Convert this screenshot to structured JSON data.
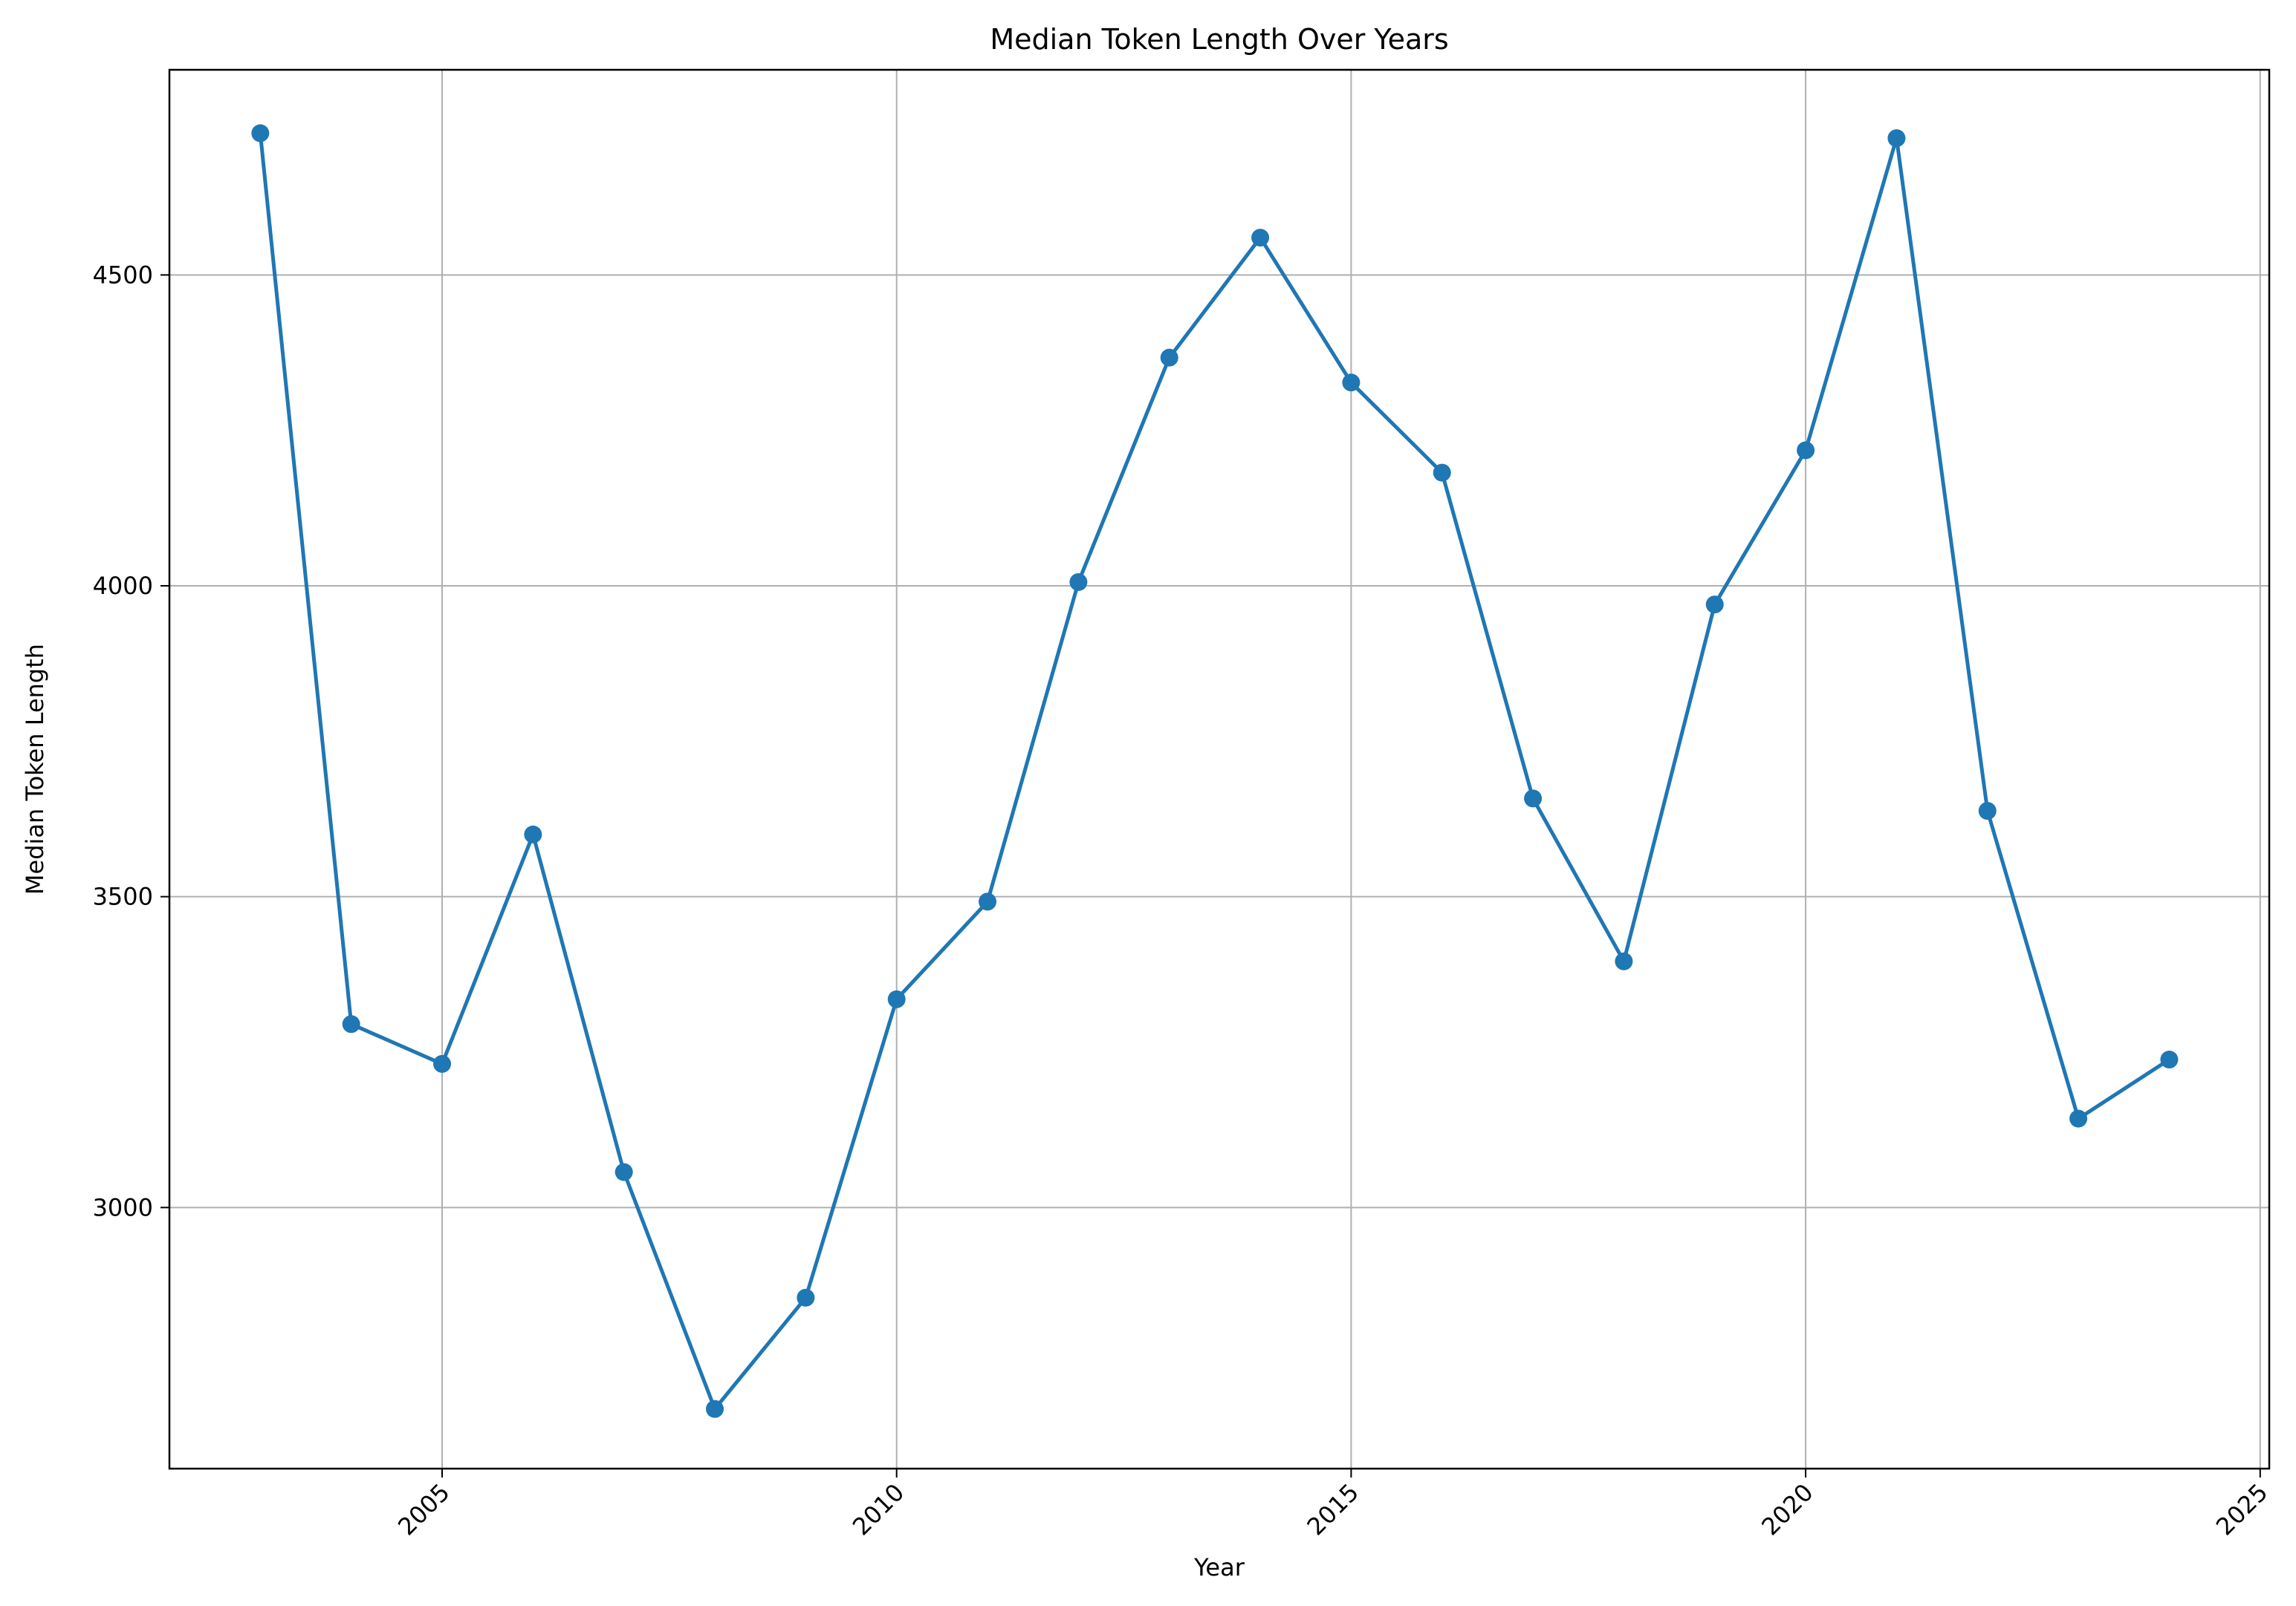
{
  "chart_data": {
    "type": "line",
    "title": "Median Token Length Over Years",
    "xlabel": "Year",
    "ylabel": "Median Token Length",
    "xlim": [
      2002,
      2025.1
    ],
    "ylim": [
      2580,
      4830
    ],
    "xticks": [
      2005,
      2010,
      2015,
      2020,
      2025
    ],
    "yticks": [
      3000,
      3500,
      4000,
      4500
    ],
    "grid": true,
    "x_tick_rotation": 45,
    "colors": {
      "line": "#1f77b4",
      "grid": "#b0b0b0",
      "axes": "#000000"
    },
    "series": [
      {
        "name": "",
        "x": [
          2003,
          2004,
          2005,
          2006,
          2007,
          2008,
          2009,
          2010,
          2011,
          2012,
          2013,
          2014,
          2015,
          2016,
          2017,
          2018,
          2019,
          2020,
          2021,
          2022,
          2023,
          2024
        ],
        "y": [
          4728,
          3295,
          3231,
          3600,
          3057,
          2676,
          2855,
          3335,
          3492,
          4006,
          4367,
          4560,
          4327,
          4182,
          3658,
          3396,
          3970,
          4218,
          4720,
          3638,
          3143,
          3238
        ]
      }
    ]
  }
}
